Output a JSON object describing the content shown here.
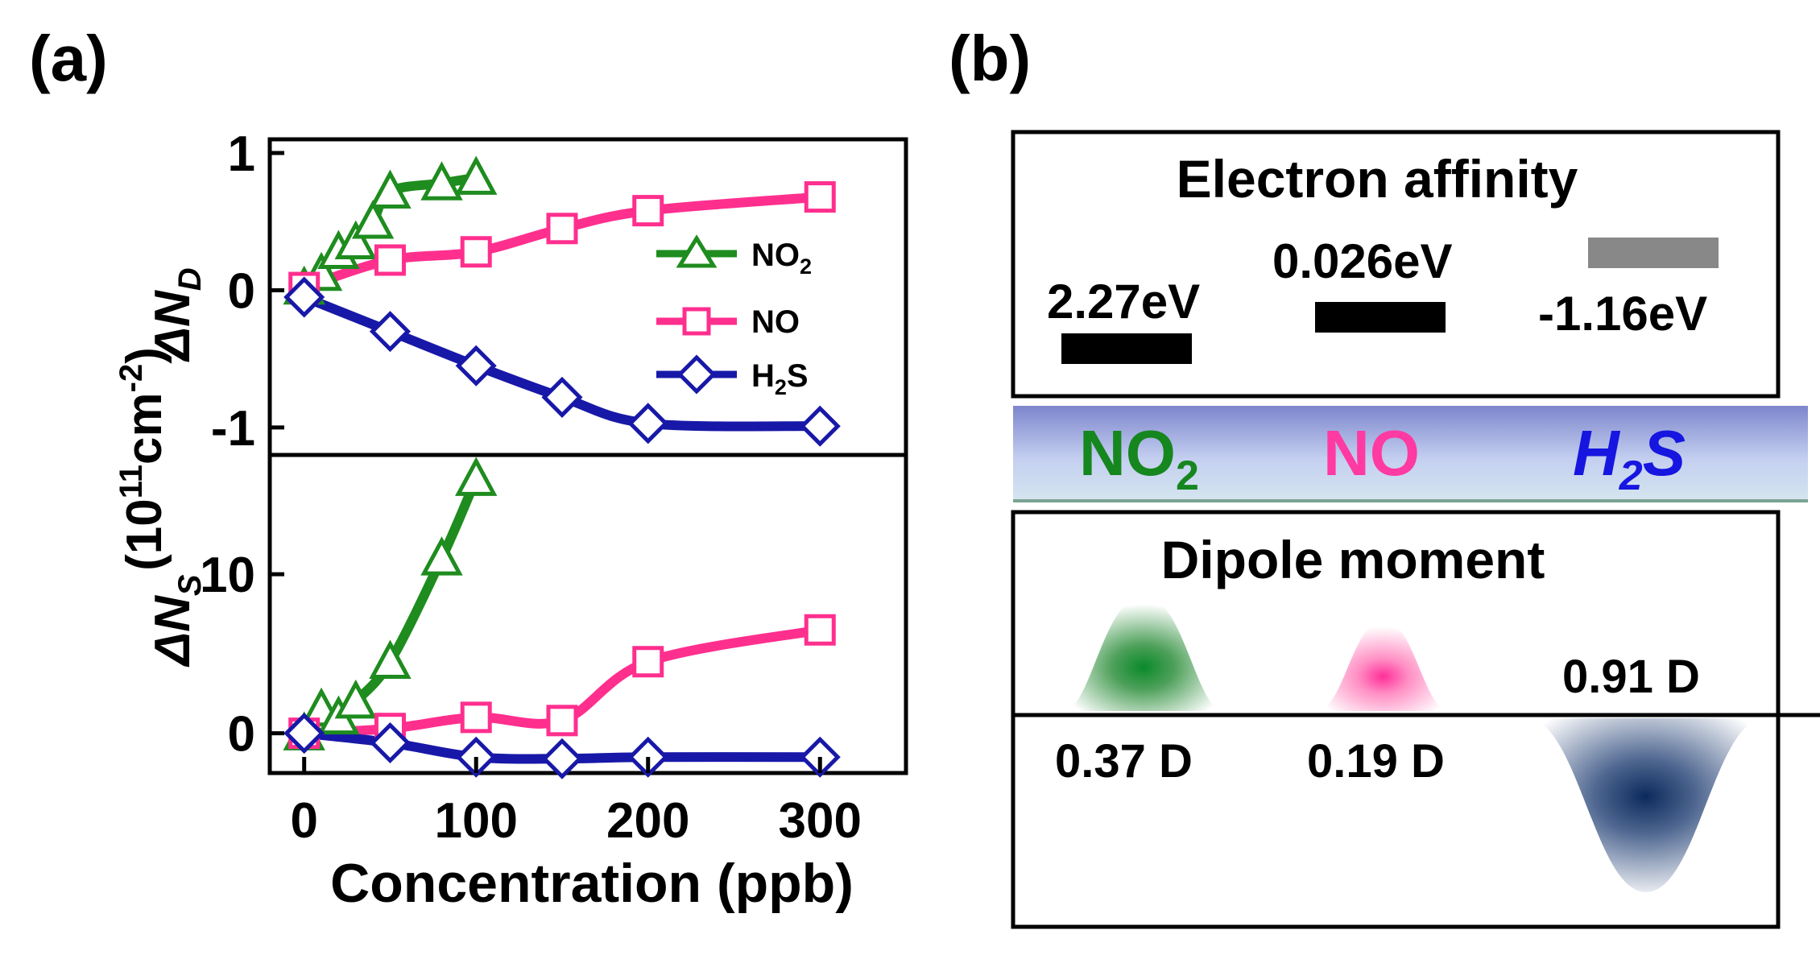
{
  "figure": {
    "panel_a_label": "(a)",
    "panel_b_label": "(b)"
  },
  "chart_data": [
    {
      "type": "line",
      "title": "",
      "xlabel": "Concentration (ppb)",
      "ylabel_top": "ΔN",
      "ylabel_top_sub": "D",
      "ylabel_bottom": "ΔN",
      "ylabel_bottom_sub": "S",
      "ylabel_unit_open": "(10",
      "ylabel_unit_exp": "11",
      "ylabel_unit_mid": "cm",
      "ylabel_unit_exp2": "-2",
      "ylabel_unit_close": ")",
      "xlim": [
        -20,
        350
      ],
      "xticks": [
        "0",
        "100",
        "200",
        "300"
      ],
      "xtick_values": [
        0,
        100,
        200,
        300
      ],
      "legend": {
        "position": "inside-right-top-panel",
        "entries": [
          {
            "name": "NO",
            "sub": "2",
            "color": "#1e8c1e",
            "marker": "triangle"
          },
          {
            "name": "NO",
            "sub": "",
            "color": "#ff2f8e",
            "marker": "square"
          },
          {
            "name": "H",
            "sub": "2",
            "tail": "S",
            "color": "#1818a8",
            "marker": "diamond"
          }
        ]
      },
      "panels": [
        {
          "name": "delta-ND",
          "ylim": [
            -1.2,
            1.1
          ],
          "yticks": [
            "1",
            "0",
            "-1"
          ],
          "ytick_values": [
            1,
            0,
            -1
          ],
          "series": [
            {
              "name": "NO2",
              "color": "#1e8c1e",
              "marker": "triangle",
              "x": [
                0,
                10,
                20,
                30,
                40,
                50,
                80,
                100
              ],
              "y": [
                0.02,
                0.12,
                0.28,
                0.35,
                0.5,
                0.72,
                0.78,
                0.82
              ]
            },
            {
              "name": "NO",
              "color": "#ff2f8e",
              "marker": "square",
              "x": [
                0,
                50,
                100,
                150,
                200,
                300
              ],
              "y": [
                0.02,
                0.22,
                0.28,
                0.45,
                0.58,
                0.68
              ]
            },
            {
              "name": "H2S",
              "color": "#1818a8",
              "marker": "diamond",
              "x": [
                0,
                50,
                100,
                150,
                200,
                300
              ],
              "y": [
                -0.05,
                -0.3,
                -0.55,
                -0.78,
                -0.97,
                -0.99
              ]
            }
          ]
        },
        {
          "name": "delta-NS",
          "ylim": [
            -2.5,
            17.5
          ],
          "yticks": [
            "10",
            "0"
          ],
          "ytick_values": [
            10,
            0
          ],
          "series": [
            {
              "name": "NO2",
              "color": "#1e8c1e",
              "marker": "triangle",
              "x": [
                0,
                10,
                20,
                30,
                50,
                80,
                100
              ],
              "y": [
                0,
                1.5,
                1.0,
                2.0,
                4.5,
                11.0,
                16.0
              ]
            },
            {
              "name": "NO",
              "color": "#ff2f8e",
              "marker": "square",
              "x": [
                0,
                50,
                100,
                150,
                200,
                300
              ],
              "y": [
                0,
                0.3,
                1.0,
                0.8,
                4.5,
                6.5
              ]
            },
            {
              "name": "H2S",
              "color": "#1818a8",
              "marker": "diamond",
              "x": [
                0,
                50,
                100,
                150,
                200,
                300
              ],
              "y": [
                0,
                -0.6,
                -1.5,
                -1.6,
                -1.5,
                -1.5
              ]
            }
          ]
        }
      ]
    },
    {
      "type": "diagram",
      "electron_affinity": {
        "title": "Electron affinity",
        "bars": [
          {
            "label": "2.27eV",
            "value": 2.27,
            "color": "#000000"
          },
          {
            "label": "0.026eV",
            "value": 0.026,
            "color": "#000000"
          },
          {
            "label": "-1.16eV",
            "value": -1.16,
            "color": "#888888"
          }
        ]
      },
      "molecules": [
        {
          "name": "NO",
          "sub": "2",
          "tail": "",
          "color": "#16861f"
        },
        {
          "name": "NO",
          "sub": "",
          "tail": "",
          "color": "#ff3aa3"
        },
        {
          "name": "H",
          "sub": "2",
          "tail": "S",
          "color": "#1616e0"
        }
      ],
      "dipole_moment": {
        "title": "Dipole moment",
        "values": [
          {
            "label": "0.37 D",
            "value": 0.37,
            "direction": "up",
            "color": "#0a8a2a"
          },
          {
            "label": "0.19 D",
            "value": 0.19,
            "direction": "up",
            "color": "#ff3aa3"
          },
          {
            "label": "0.91 D",
            "value": 0.91,
            "direction": "down",
            "color": "#10306a"
          }
        ]
      }
    }
  ]
}
